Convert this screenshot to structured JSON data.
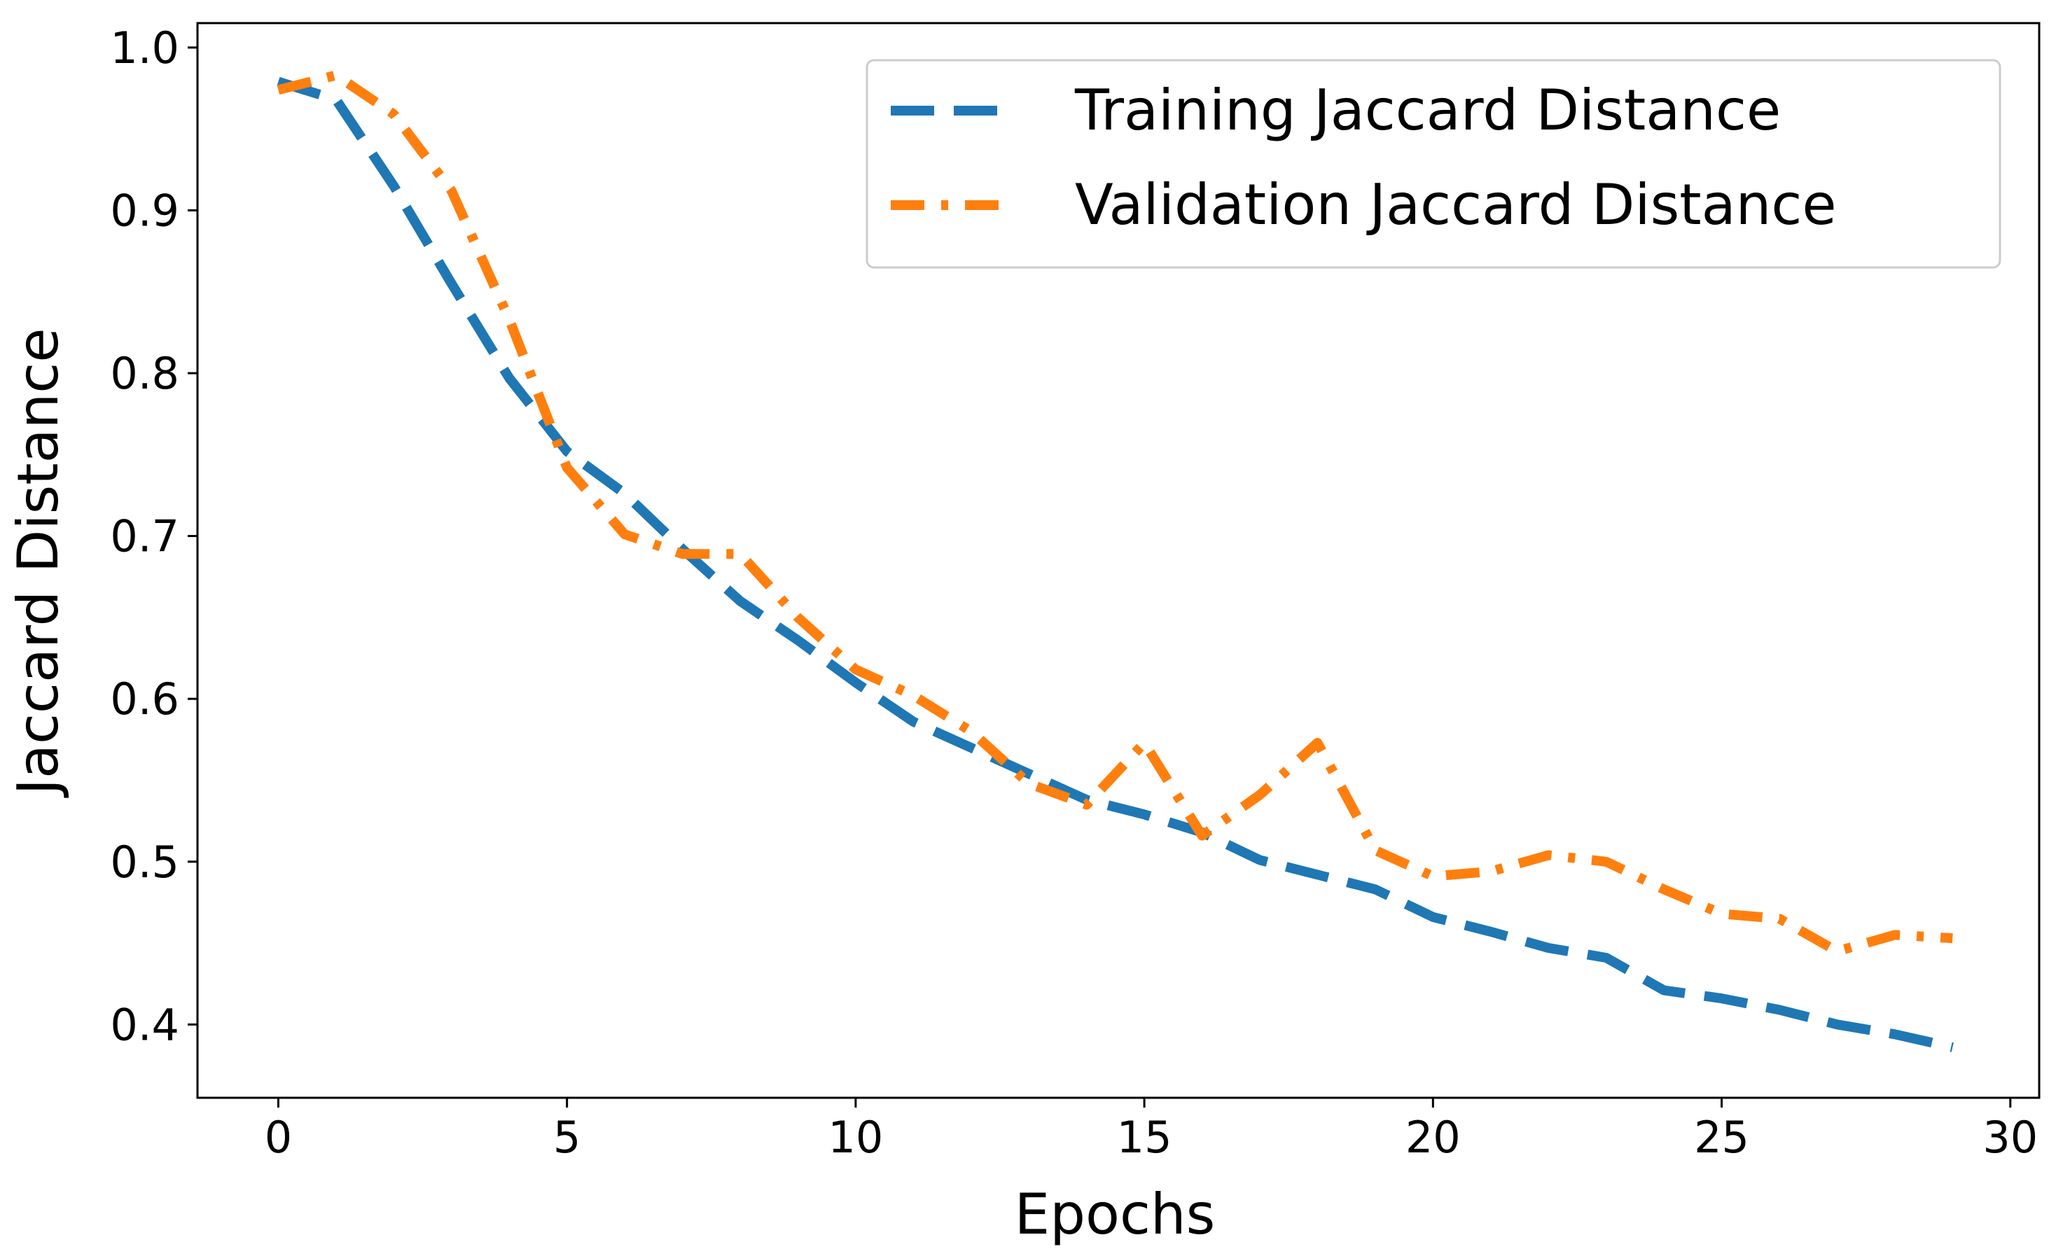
{
  "chart_data": {
    "type": "line",
    "title": "",
    "xlabel": "Epochs",
    "ylabel": "Jaccard Distance",
    "xlim": [
      -1.4,
      30.5
    ],
    "ylim": [
      0.355,
      1.015
    ],
    "xticks": [
      0,
      5,
      10,
      15,
      20,
      25,
      30
    ],
    "xtick_labels": [
      "0",
      "5",
      "10",
      "15",
      "20",
      "25",
      "30"
    ],
    "yticks": [
      0.4,
      0.5,
      0.6,
      0.7,
      0.8,
      0.9,
      1.0
    ],
    "ytick_labels": [
      "0.4",
      "0.5",
      "0.6",
      "0.7",
      "0.8",
      "0.9",
      "1.0"
    ],
    "grid": false,
    "legend_position": "top-right",
    "x": [
      0,
      1,
      2,
      3,
      4,
      5,
      6,
      7,
      8,
      9,
      10,
      11,
      12,
      13,
      14,
      15,
      16,
      17,
      18,
      19,
      20,
      21,
      22,
      23,
      24,
      25,
      26,
      27,
      28,
      29
    ],
    "series": [
      {
        "name": "Training Jaccard Distance",
        "color": "#1f77b4",
        "style": "dashed",
        "values": [
          0.979,
          0.968,
          0.915,
          0.855,
          0.797,
          0.752,
          0.726,
          0.692,
          0.66,
          0.636,
          0.61,
          0.586,
          0.57,
          0.554,
          0.538,
          0.529,
          0.518,
          0.501,
          0.492,
          0.483,
          0.466,
          0.457,
          0.447,
          0.441,
          0.421,
          0.416,
          0.409,
          0.4,
          0.394,
          0.386
        ]
      },
      {
        "name": "Validation Jaccard Distance",
        "color": "#ff7f0e",
        "style": "dashdot",
        "values": [
          0.974,
          0.983,
          0.959,
          0.912,
          0.833,
          0.742,
          0.701,
          0.689,
          0.689,
          0.65,
          0.618,
          0.602,
          0.58,
          0.548,
          0.535,
          0.573,
          0.516,
          0.541,
          0.573,
          0.507,
          0.491,
          0.494,
          0.504,
          0.5,
          0.483,
          0.468,
          0.465,
          0.445,
          0.455,
          0.453
        ]
      }
    ]
  }
}
